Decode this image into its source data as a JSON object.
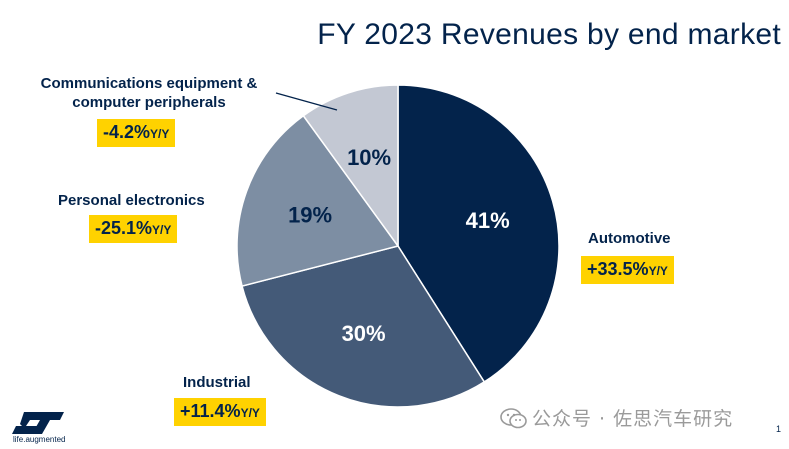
{
  "chart_data": {
    "type": "pie",
    "title": "FY 2023 Revenues by end market",
    "slices": [
      {
        "name": "Automotive",
        "value": 41,
        "label": "41%",
        "color": "#03234b",
        "text_color": "#ffffff",
        "growth": "+33.5%",
        "growth_unit": "Y/Y"
      },
      {
        "name": "Industrial",
        "value": 30,
        "label": "30%",
        "color": "#445a78",
        "text_color": "#ffffff",
        "growth": "+11.4%",
        "growth_unit": "Y/Y"
      },
      {
        "name": "Personal electronics",
        "value": 19,
        "label": "19%",
        "color": "#7d8ea3",
        "text_color": "#03234b",
        "growth": "-25.1%",
        "growth_unit": "Y/Y"
      },
      {
        "name": "Communications equipment & computer peripherals",
        "value": 10,
        "label": "10%",
        "color": "#c3c8d3",
        "text_color": "#03234b",
        "growth": "-4.2%",
        "growth_unit": "Y/Y"
      }
    ],
    "start_angle": "12 o'clock",
    "direction": "clockwise"
  },
  "labels": {
    "automotive": "Automotive",
    "industrial": "Industrial",
    "personal": "Personal electronics",
    "comms_line1": "Communications equipment &",
    "comms_line2": "computer peripherals"
  },
  "badges": {
    "automotive": "+33.5%",
    "industrial": "+11.4%",
    "personal": "-25.1%",
    "comms": "-4.2%",
    "unit": "Y/Y"
  },
  "logo": {
    "tagline": "life.augmented"
  },
  "watermark": "公众号 · 佐思汽车研究",
  "page_number": "1"
}
